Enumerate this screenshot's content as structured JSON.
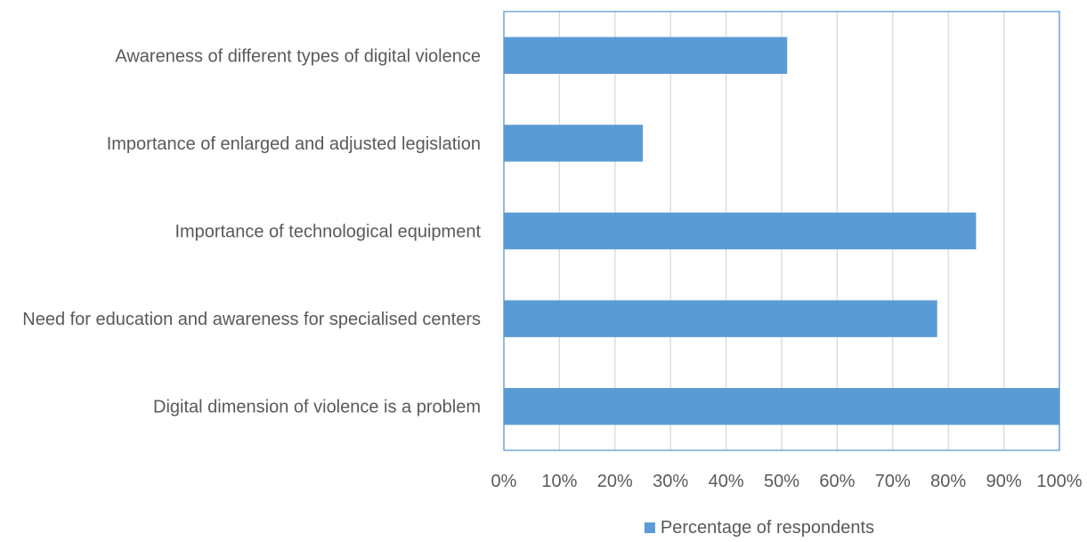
{
  "chart_data": {
    "type": "bar",
    "orientation": "horizontal",
    "categories": [
      "Awareness of different types of digital violence",
      "Importance of enlarged and adjusted legislation",
      "Importance of technological equipment",
      "Need for education and awareness for specialised centers",
      "Digital dimension of violence is a problem"
    ],
    "series": [
      {
        "name": "Percentage of respondents",
        "values": [
          51,
          25,
          85,
          78,
          100
        ],
        "color": "#5b9bd5"
      }
    ],
    "xlim": [
      0,
      100
    ],
    "xticks": [
      "0%",
      "10%",
      "20%",
      "30%",
      "40%",
      "50%",
      "60%",
      "70%",
      "80%",
      "90%",
      "100%"
    ],
    "grid": "vertical",
    "legend": "bottom",
    "title": "",
    "xlabel": "",
    "ylabel": ""
  }
}
